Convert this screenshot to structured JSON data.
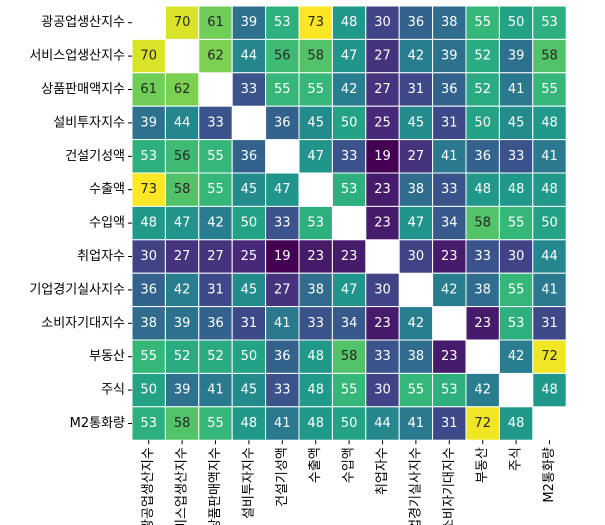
{
  "chart_data": {
    "type": "heatmap",
    "title": "",
    "xlabel": "",
    "ylabel": "",
    "colormap": "viridis",
    "colormap_stops": [
      "#440154",
      "#482878",
      "#3e4989",
      "#31688e",
      "#26828e",
      "#1f9e89",
      "#35b779",
      "#6ece58",
      "#b5de2b",
      "#fde725"
    ],
    "value_range": [
      19,
      73
    ],
    "diagonal": "blank",
    "grid": false,
    "colorbar": false,
    "labels": [
      "광공업생산지수",
      "서비스업생산지수",
      "상품판매액지수",
      "설비투자지수",
      "건설기성액",
      "수출액",
      "수입액",
      "취업자수",
      "기업경기실사지수",
      "소비자기대지수",
      "부동산",
      "주식",
      "M2통화량"
    ],
    "values": [
      [
        null,
        70,
        61,
        39,
        53,
        73,
        48,
        30,
        36,
        38,
        55,
        50,
        53
      ],
      [
        70,
        null,
        62,
        44,
        56,
        58,
        47,
        27,
        42,
        39,
        52,
        39,
        58
      ],
      [
        61,
        62,
        null,
        33,
        55,
        55,
        42,
        27,
        31,
        36,
        52,
        41,
        55
      ],
      [
        39,
        44,
        33,
        null,
        36,
        45,
        50,
        25,
        45,
        31,
        50,
        45,
        48
      ],
      [
        53,
        56,
        55,
        36,
        null,
        47,
        33,
        19,
        27,
        41,
        36,
        33,
        41
      ],
      [
        73,
        58,
        55,
        45,
        47,
        null,
        53,
        23,
        38,
        33,
        48,
        48,
        48
      ],
      [
        48,
        47,
        42,
        50,
        33,
        53,
        null,
        23,
        47,
        34,
        58,
        55,
        50
      ],
      [
        30,
        27,
        27,
        25,
        19,
        23,
        23,
        null,
        30,
        23,
        33,
        30,
        44
      ],
      [
        36,
        42,
        31,
        45,
        27,
        38,
        47,
        30,
        null,
        42,
        38,
        55,
        41
      ],
      [
        38,
        39,
        36,
        31,
        41,
        33,
        34,
        23,
        42,
        null,
        23,
        53,
        31
      ],
      [
        55,
        52,
        52,
        50,
        36,
        48,
        58,
        33,
        38,
        23,
        null,
        42,
        72
      ],
      [
        50,
        39,
        41,
        45,
        33,
        48,
        55,
        30,
        55,
        53,
        42,
        null,
        48
      ],
      [
        53,
        58,
        55,
        48,
        41,
        48,
        50,
        44,
        41,
        31,
        72,
        48,
        null
      ]
    ]
  }
}
